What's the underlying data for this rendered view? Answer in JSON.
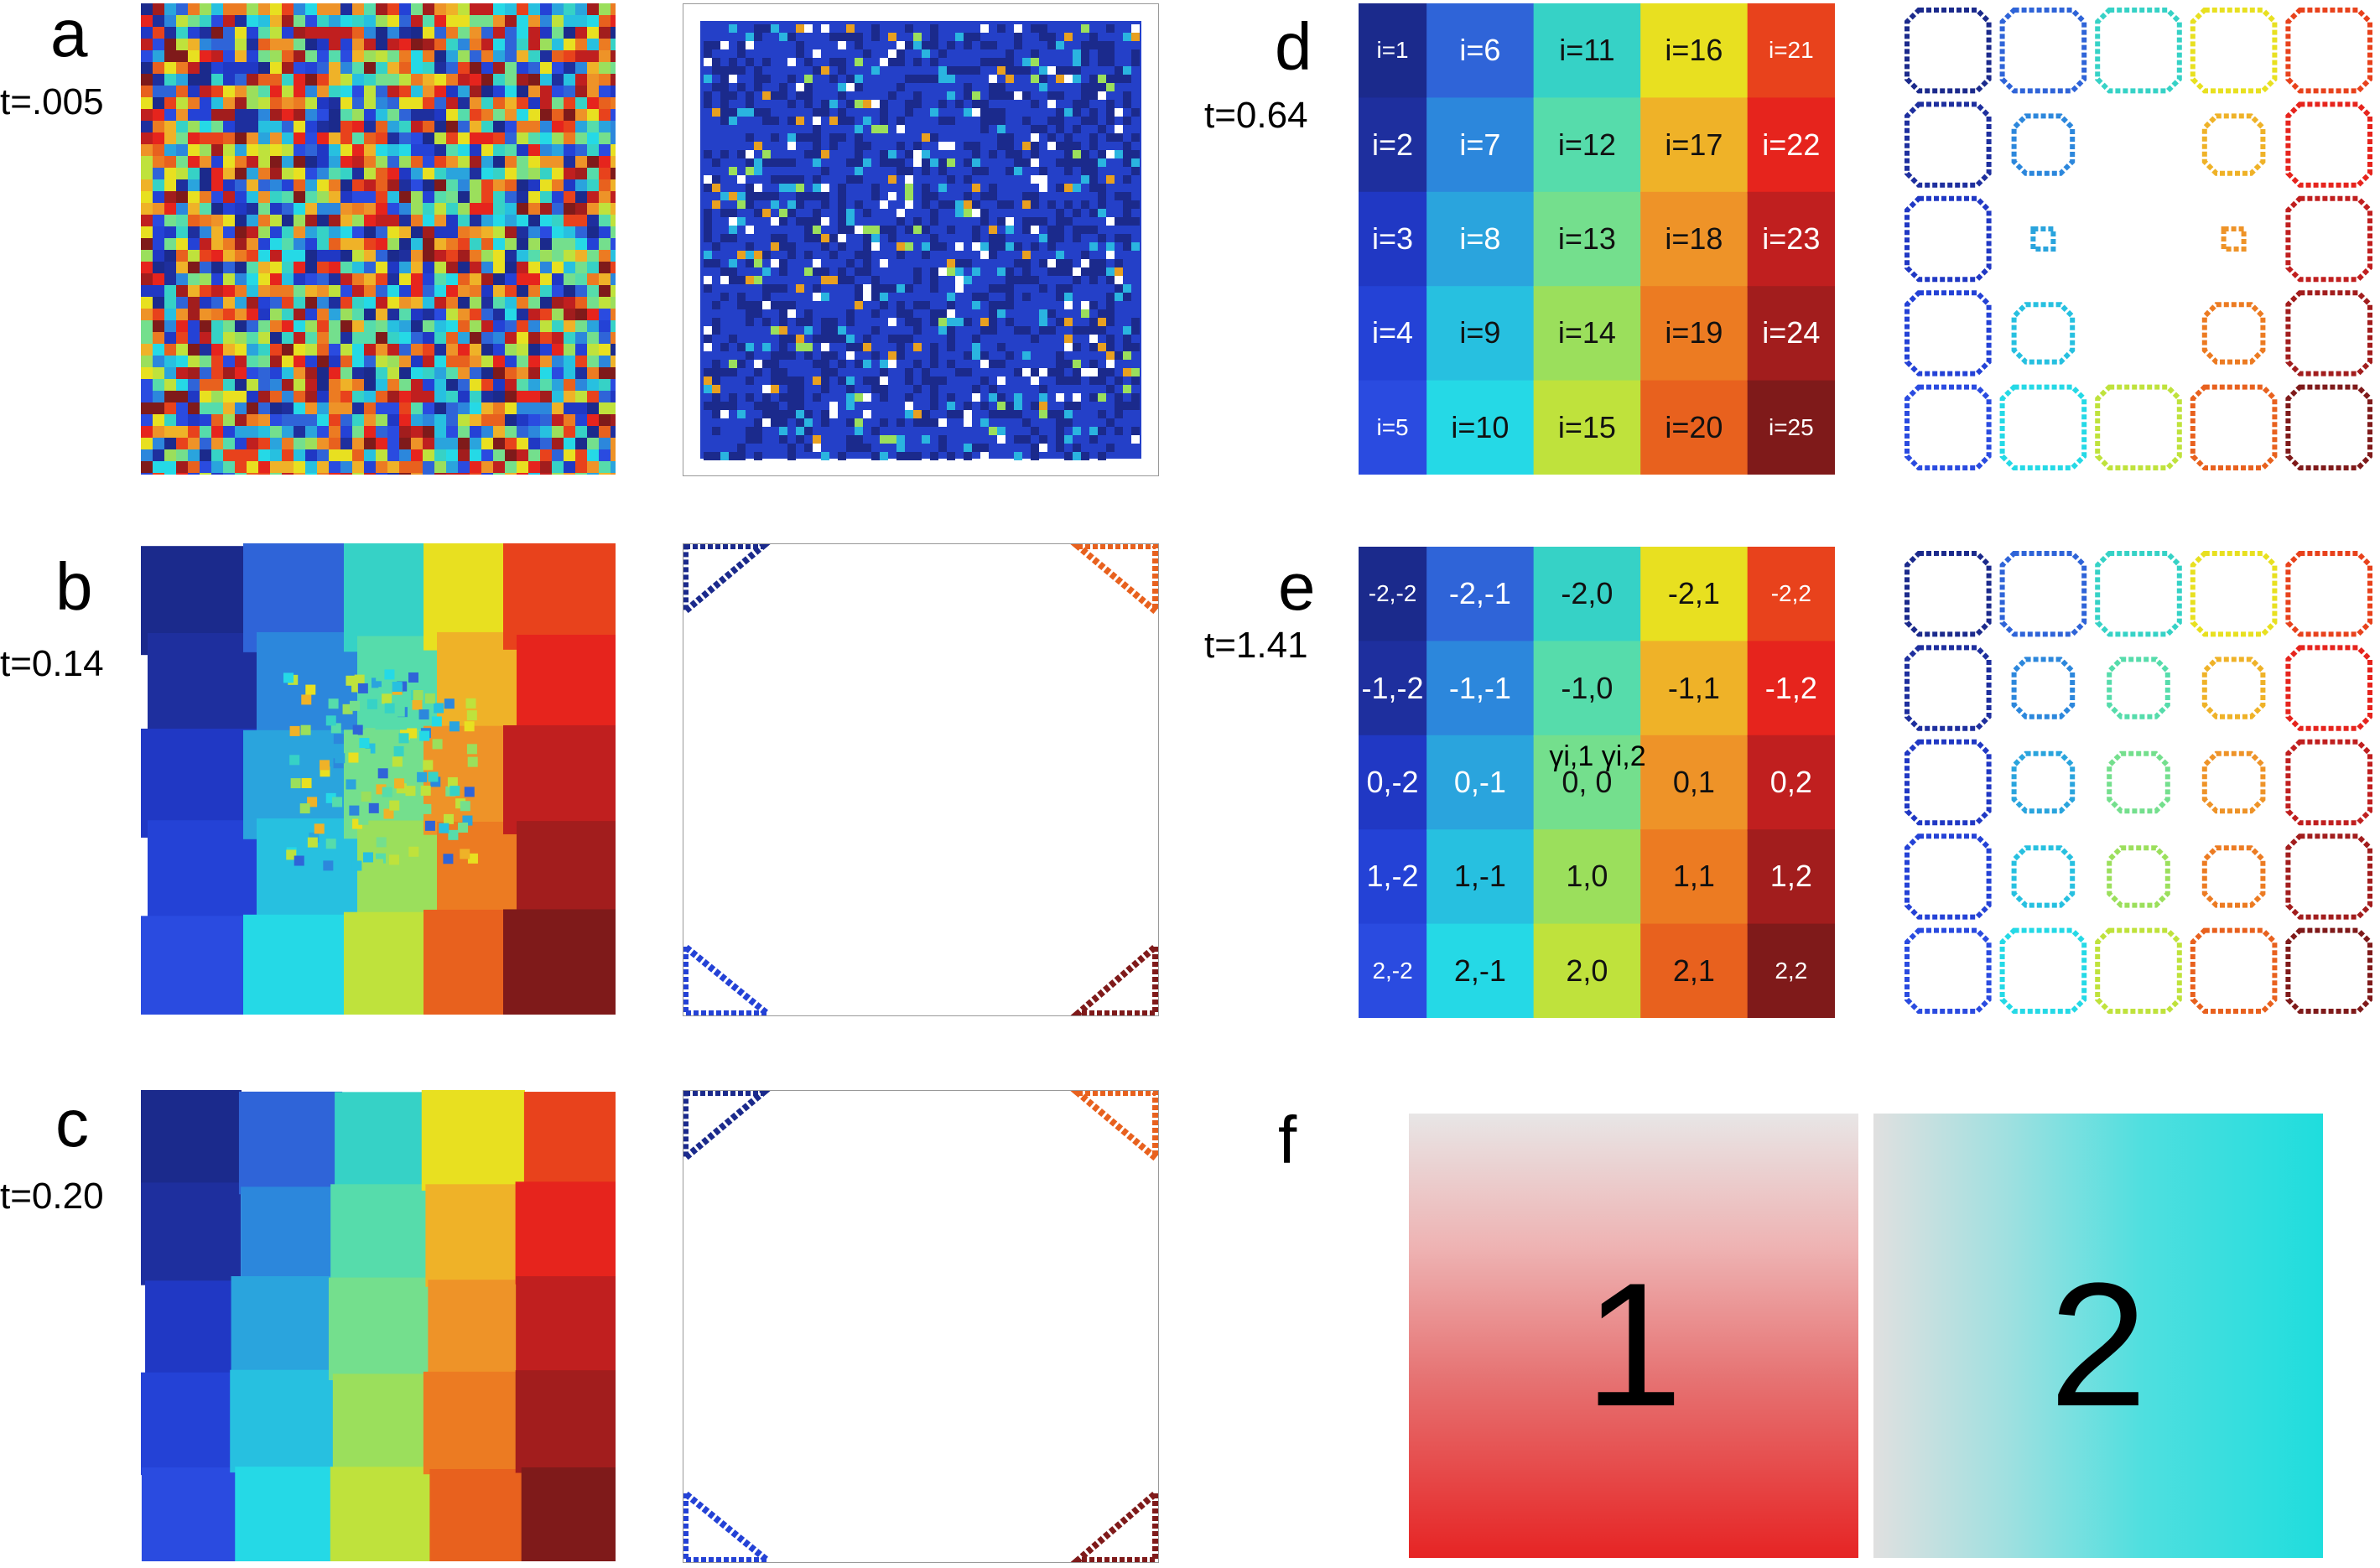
{
  "figure": {
    "panels": [
      {
        "letter": "a",
        "time": "t=.005"
      },
      {
        "letter": "b",
        "time": "t=0.14"
      },
      {
        "letter": "c",
        "time": "t=0.20"
      },
      {
        "letter": "d",
        "time": "t=0.64"
      },
      {
        "letter": "e",
        "time": "t=1.41"
      },
      {
        "letter": "f",
        "time": ""
      }
    ],
    "d_labels": [
      "i=1",
      "i=2",
      "i=3",
      "i=4",
      "i=5",
      "i=6",
      "i=7",
      "i=8",
      "i=9",
      "i=10",
      "i=11",
      "i=12",
      "i=13",
      "i=14",
      "i=15",
      "i=16",
      "i=17",
      "i=18",
      "i=19",
      "i=20",
      "i=21",
      "i=22",
      "i=23",
      "i=24",
      "i=25"
    ],
    "e_labels": [
      "-2,-2",
      "-1,-2",
      "0,-2",
      "1,-2",
      "2,-2",
      "-2,-1",
      "-1,-1",
      "0,-1",
      "1,-1",
      "2,-1",
      "-2,0",
      "-1,0",
      "0, 0",
      "1,0",
      "2,0",
      "-2,1",
      "-1,1",
      "0,1",
      "1,1",
      "2,1",
      "-2,2",
      "-1,2",
      "0,2",
      "1,2",
      "2,2"
    ],
    "e_gamma": "γi,1 γi,2",
    "f_labels": [
      "1",
      "2"
    ]
  },
  "colors": {
    "column_palettes": [
      [
        "#1b2a8c",
        "#1e2f9e",
        "#2038c4",
        "#2442d6",
        "#2a4be0"
      ],
      [
        "#2f64d8",
        "#2c87dc",
        "#2aa4dd",
        "#27c0e0",
        "#25d9e6"
      ],
      [
        "#36d2c6",
        "#56dcab",
        "#74df8d",
        "#9bdf5c",
        "#bfe23c"
      ],
      [
        "#e8e020",
        "#efb228",
        "#ee9328",
        "#ec7b22",
        "#e8611e"
      ],
      [
        "#e8421c",
        "#e6241d",
        "#c01f1f",
        "#a21d1d",
        "#7f1a1a"
      ]
    ],
    "panel_f_red": "#e62424",
    "panel_f_cyan": "#1fdddd",
    "panel_f_gray": "#e0e0e0"
  }
}
